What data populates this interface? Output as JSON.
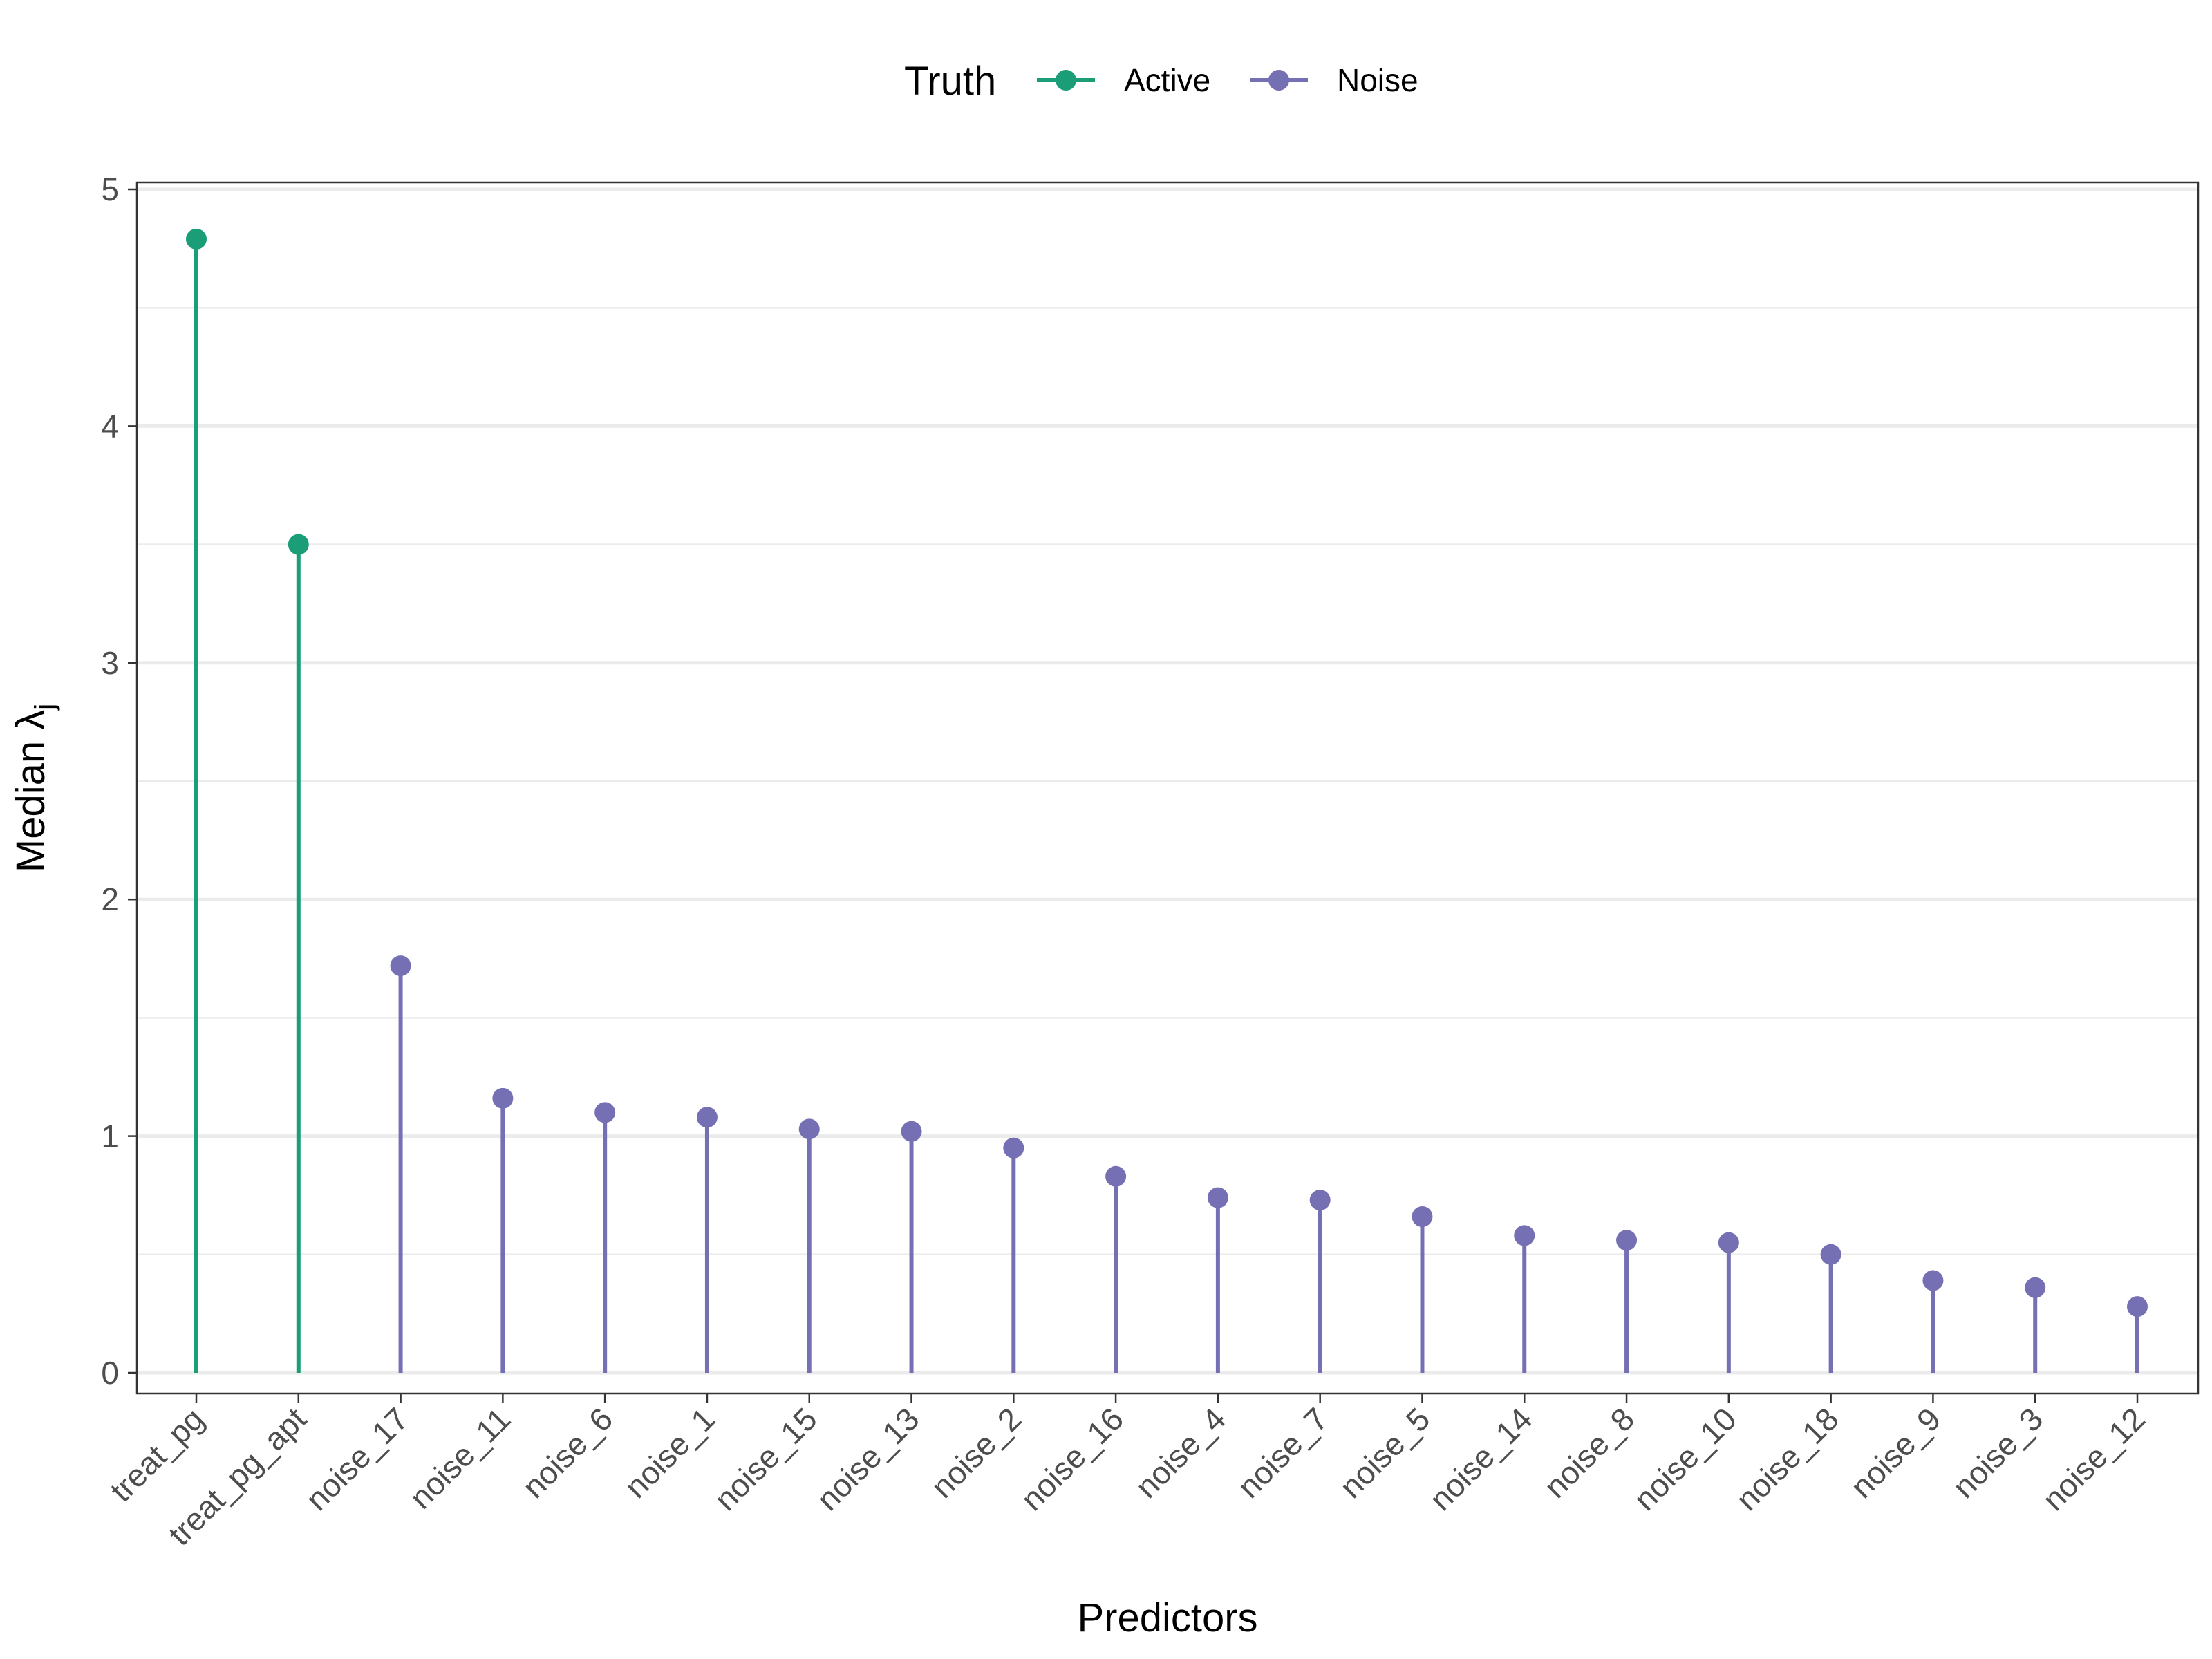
{
  "chart_data": {
    "type": "lollipop",
    "xlabel": "Predictors",
    "ylabel_prefix": "Median ",
    "ylabel_symbol": "λ",
    "ylabel_subscript": "j",
    "ylim": [
      0,
      5
    ],
    "y_ticks": [
      "0",
      "1",
      "2",
      "3",
      "4",
      "5"
    ],
    "grid": true,
    "legend": {
      "title": "Truth",
      "position": "top",
      "entries": [
        {
          "label": "Active",
          "color": "#1B9E77"
        },
        {
          "label": "Noise",
          "color": "#7570B3"
        }
      ]
    },
    "categories": [
      "treat_pg",
      "treat_pg_apt",
      "noise_17",
      "noise_11",
      "noise_6",
      "noise_1",
      "noise_15",
      "noise_13",
      "noise_2",
      "noise_16",
      "noise_4",
      "noise_7",
      "noise_5",
      "noise_14",
      "noise_8",
      "noise_10",
      "noise_18",
      "noise_9",
      "noise_3",
      "noise_12"
    ],
    "values": [
      4.79,
      3.5,
      1.72,
      1.16,
      1.1,
      1.08,
      1.03,
      1.02,
      0.95,
      0.83,
      0.74,
      0.73,
      0.66,
      0.58,
      0.56,
      0.55,
      0.5,
      0.39,
      0.36,
      0.28
    ],
    "truth": [
      "Active",
      "Active",
      "Noise",
      "Noise",
      "Noise",
      "Noise",
      "Noise",
      "Noise",
      "Noise",
      "Noise",
      "Noise",
      "Noise",
      "Noise",
      "Noise",
      "Noise",
      "Noise",
      "Noise",
      "Noise",
      "Noise",
      "Noise"
    ]
  }
}
